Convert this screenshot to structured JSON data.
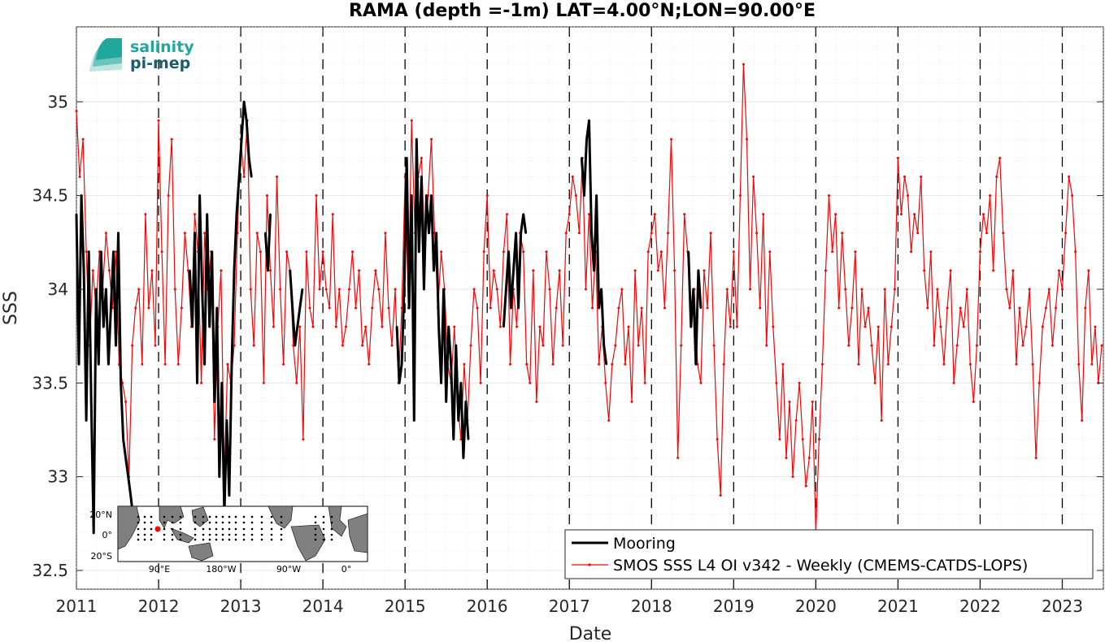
{
  "logo": {
    "line1": "salinity",
    "line2": "pi-mep"
  },
  "chart_data": {
    "type": "line",
    "title": "RAMA (depth =-1m) LAT=4.00°N;LON=90.00°E",
    "xlabel": "Date",
    "ylabel": "SSS",
    "xlim": [
      2011.0,
      2023.5
    ],
    "ylim": [
      32.4,
      35.4
    ],
    "x_ticks": [
      2011,
      2012,
      2013,
      2014,
      2015,
      2016,
      2017,
      2018,
      2019,
      2020,
      2021,
      2022,
      2023
    ],
    "x_tick_labels": [
      "2011",
      "2012",
      "2013",
      "2014",
      "2015",
      "2016",
      "2017",
      "2018",
      "2019",
      "2020",
      "2021",
      "2022",
      "2023"
    ],
    "y_ticks": [
      32.5,
      33,
      33.5,
      34,
      34.5,
      35
    ],
    "y_tick_labels": [
      "32.5",
      "33",
      "33.5",
      "34",
      "34.5",
      "35"
    ],
    "grid": true,
    "year_boundaries_dashed": true,
    "legend_position": "bottom-right",
    "series": [
      {
        "name": "Mooring",
        "color": "#000000",
        "x": [
          2011.0,
          2011.03,
          2011.06,
          2011.09,
          2011.12,
          2011.15,
          2011.18,
          2011.21,
          2011.24,
          2011.27,
          2011.3,
          2011.33,
          2011.36,
          2011.39,
          2011.42,
          2011.45,
          2011.48,
          2011.51,
          2011.54,
          2011.57,
          2011.6,
          2011.63,
          2011.66,
          2011.7,
          2012.38,
          2012.41,
          2012.44,
          2012.47,
          2012.5,
          2012.53,
          2012.56,
          2012.59,
          2012.62,
          2012.65,
          2012.68,
          2012.71,
          2012.74,
          2012.77,
          2012.8,
          2012.83,
          2012.86,
          2012.89,
          2012.92,
          2012.95,
          2012.98,
          2013.01,
          2013.04,
          2013.07,
          2013.1,
          2013.13,
          2013.3,
          2013.33,
          2013.36,
          2013.6,
          2013.63,
          2013.66,
          2013.69,
          2013.72,
          2013.75,
          2014.9,
          2014.93,
          2014.96,
          2014.99,
          2015.02,
          2015.05,
          2015.08,
          2015.11,
          2015.14,
          2015.17,
          2015.2,
          2015.23,
          2015.26,
          2015.29,
          2015.32,
          2015.35,
          2015.38,
          2015.41,
          2015.44,
          2015.47,
          2015.5,
          2015.53,
          2015.56,
          2015.59,
          2015.62,
          2015.65,
          2015.68,
          2015.71,
          2015.74,
          2015.77,
          2016.2,
          2016.23,
          2016.26,
          2016.29,
          2016.32,
          2016.35,
          2016.38,
          2016.41,
          2016.44,
          2016.47,
          2017.15,
          2017.18,
          2017.21,
          2017.24,
          2017.27,
          2017.3,
          2017.33,
          2017.36,
          2017.39,
          2017.42,
          2017.45,
          2018.45,
          2018.48,
          2018.51,
          2018.54,
          2018.57,
          2018.6
        ],
        "y": [
          34.4,
          33.6,
          34.5,
          34.1,
          33.3,
          34.2,
          33.4,
          32.7,
          34.0,
          33.6,
          34.2,
          33.8,
          34.0,
          33.6,
          33.9,
          34.2,
          33.7,
          34.3,
          33.5,
          33.2,
          33.1,
          33.0,
          32.9,
          32.75,
          34.1,
          33.8,
          34.3,
          33.5,
          34.5,
          34.0,
          33.6,
          34.4,
          33.8,
          34.2,
          33.4,
          33.9,
          33.0,
          33.5,
          32.8,
          33.3,
          32.9,
          33.6,
          34.1,
          34.4,
          34.6,
          34.8,
          35.0,
          34.9,
          34.7,
          34.6,
          34.3,
          34.1,
          34.4,
          34.1,
          33.9,
          33.7,
          33.8,
          33.9,
          34.0,
          33.8,
          33.5,
          33.6,
          34.0,
          34.7,
          33.9,
          34.5,
          33.3,
          34.8,
          34.2,
          34.6,
          34.0,
          34.5,
          34.3,
          34.5,
          34.1,
          34.3,
          33.8,
          33.5,
          34.0,
          33.4,
          33.8,
          33.6,
          33.2,
          33.7,
          33.3,
          33.5,
          33.1,
          33.4,
          33.2,
          33.8,
          34.0,
          34.2,
          33.9,
          34.1,
          34.3,
          33.9,
          34.3,
          34.4,
          34.3,
          34.7,
          34.5,
          34.8,
          34.9,
          34.3,
          34.1,
          34.5,
          33.9,
          34.0,
          33.7,
          33.6,
          34.2,
          33.8,
          34.0,
          33.6,
          34.1,
          33.9
        ]
      },
      {
        "name": "SMOS SSS L4 OI v342 - Weekly (CMEMS-CATDS-LOPS)",
        "color": "#ff0000",
        "x": [
          2011.0,
          2011.04,
          2011.08,
          2011.12,
          2011.16,
          2011.2,
          2011.24,
          2011.28,
          2011.32,
          2011.36,
          2011.4,
          2011.44,
          2011.48,
          2011.52,
          2011.56,
          2011.6,
          2011.64,
          2011.68,
          2011.72,
          2011.76,
          2011.8,
          2011.84,
          2011.88,
          2011.92,
          2011.96,
          2012.0,
          2012.04,
          2012.08,
          2012.12,
          2012.16,
          2012.2,
          2012.24,
          2012.28,
          2012.32,
          2012.36,
          2012.4,
          2012.44,
          2012.48,
          2012.52,
          2012.56,
          2012.6,
          2012.64,
          2012.68,
          2012.72,
          2012.76,
          2012.8,
          2012.84,
          2012.88,
          2012.92,
          2012.96,
          2013.0,
          2013.04,
          2013.08,
          2013.12,
          2013.16,
          2013.2,
          2013.24,
          2013.28,
          2013.32,
          2013.36,
          2013.4,
          2013.44,
          2013.48,
          2013.52,
          2013.56,
          2013.6,
          2013.64,
          2013.68,
          2013.72,
          2013.76,
          2013.8,
          2013.84,
          2013.88,
          2013.92,
          2013.96,
          2014.0,
          2014.04,
          2014.08,
          2014.12,
          2014.16,
          2014.2,
          2014.24,
          2014.28,
          2014.32,
          2014.36,
          2014.4,
          2014.44,
          2014.48,
          2014.52,
          2014.56,
          2014.6,
          2014.64,
          2014.68,
          2014.72,
          2014.76,
          2014.8,
          2014.84,
          2014.88,
          2014.92,
          2014.96,
          2015.0,
          2015.04,
          2015.08,
          2015.12,
          2015.16,
          2015.2,
          2015.24,
          2015.28,
          2015.32,
          2015.36,
          2015.4,
          2015.44,
          2015.48,
          2015.52,
          2015.56,
          2015.6,
          2015.64,
          2015.68,
          2015.72,
          2015.76,
          2015.8,
          2015.84,
          2015.88,
          2015.92,
          2015.96,
          2016.0,
          2016.04,
          2016.08,
          2016.12,
          2016.16,
          2016.2,
          2016.24,
          2016.28,
          2016.32,
          2016.36,
          2016.4,
          2016.44,
          2016.48,
          2016.52,
          2016.56,
          2016.6,
          2016.64,
          2016.68,
          2016.72,
          2016.76,
          2016.8,
          2016.84,
          2016.88,
          2016.92,
          2016.96,
          2017.0,
          2017.04,
          2017.08,
          2017.12,
          2017.16,
          2017.2,
          2017.24,
          2017.28,
          2017.32,
          2017.36,
          2017.4,
          2017.44,
          2017.48,
          2017.52,
          2017.56,
          2017.6,
          2017.64,
          2017.68,
          2017.72,
          2017.76,
          2017.8,
          2017.84,
          2017.88,
          2017.92,
          2017.96,
          2018.0,
          2018.04,
          2018.08,
          2018.12,
          2018.16,
          2018.2,
          2018.24,
          2018.28,
          2018.32,
          2018.36,
          2018.4,
          2018.44,
          2018.48,
          2018.52,
          2018.56,
          2018.6,
          2018.64,
          2018.68,
          2018.72,
          2018.76,
          2018.8,
          2018.84,
          2018.88,
          2018.92,
          2018.96,
          2019.0,
          2019.04,
          2019.08,
          2019.12,
          2019.16,
          2019.2,
          2019.24,
          2019.28,
          2019.32,
          2019.36,
          2019.4,
          2019.44,
          2019.48,
          2019.52,
          2019.56,
          2019.6,
          2019.64,
          2019.68,
          2019.72,
          2019.76,
          2019.8,
          2019.84,
          2019.88,
          2019.92,
          2019.96,
          2020.0,
          2020.04,
          2020.08,
          2020.12,
          2020.16,
          2020.2,
          2020.24,
          2020.28,
          2020.32,
          2020.36,
          2020.4,
          2020.44,
          2020.48,
          2020.52,
          2020.56,
          2020.6,
          2020.64,
          2020.68,
          2020.72,
          2020.76,
          2020.8,
          2020.84,
          2020.88,
          2020.92,
          2020.96,
          2021.0,
          2021.04,
          2021.08,
          2021.12,
          2021.16,
          2021.2,
          2021.24,
          2021.28,
          2021.32,
          2021.36,
          2021.4,
          2021.44,
          2021.48,
          2021.52,
          2021.56,
          2021.6,
          2021.64,
          2021.68,
          2021.72,
          2021.76,
          2021.8,
          2021.84,
          2021.88,
          2021.92,
          2021.96,
          2022.0,
          2022.04,
          2022.08,
          2022.12,
          2022.16,
          2022.2,
          2022.24,
          2022.28,
          2022.32,
          2022.36,
          2022.4,
          2022.44,
          2022.48,
          2022.52,
          2022.56,
          2022.6,
          2022.64,
          2022.68,
          2022.72,
          2022.76,
          2022.8,
          2022.84,
          2022.88,
          2022.92,
          2022.96,
          2023.0,
          2023.04,
          2023.08,
          2023.12,
          2023.16,
          2023.2,
          2023.24,
          2023.28,
          2023.32,
          2023.36,
          2023.4,
          2023.44,
          2023.48
        ],
        "y": [
          34.95,
          34.6,
          34.8,
          34.2,
          33.7,
          34.1,
          33.9,
          34.2,
          34.0,
          34.3,
          34.1,
          33.9,
          34.2,
          33.6,
          33.5,
          33.4,
          33.0,
          33.7,
          33.9,
          34.0,
          33.6,
          34.4,
          33.9,
          34.1,
          33.7,
          34.9,
          34.2,
          33.6,
          34.5,
          34.8,
          34.0,
          33.6,
          33.9,
          34.3,
          34.1,
          33.8,
          34.4,
          34.2,
          33.5,
          34.3,
          34.0,
          34.2,
          33.2,
          33.8,
          34.1,
          33.0,
          33.6,
          33.5,
          33.7,
          34.3,
          34.8,
          34.6,
          34.9,
          34.0,
          33.7,
          34.3,
          34.2,
          33.5,
          34.5,
          34.1,
          33.8,
          34.6,
          34.0,
          33.6,
          34.2,
          34.1,
          33.7,
          33.5,
          33.8,
          33.2,
          34.2,
          33.9,
          33.8,
          34.5,
          34.0,
          34.2,
          34.0,
          33.9,
          34.4,
          33.8,
          34.0,
          33.7,
          33.8,
          34.0,
          34.2,
          33.9,
          34.1,
          33.7,
          33.8,
          33.6,
          33.9,
          34.1,
          34.0,
          33.8,
          34.3,
          33.9,
          33.7,
          34.0,
          33.5,
          33.9,
          34.6,
          33.9,
          34.9,
          34.3,
          34.6,
          34.7,
          34.2,
          34.5,
          34.8,
          34.3,
          33.9,
          34.2,
          34.0,
          33.6,
          33.5,
          33.8,
          33.4,
          33.2,
          33.6,
          33.3,
          33.7,
          34.0,
          33.9,
          33.5,
          34.2,
          34.5,
          33.9,
          34.1,
          34.0,
          33.8,
          34.2,
          34.4,
          33.6,
          34.0,
          33.8,
          34.3,
          34.2,
          33.6,
          33.5,
          34.1,
          33.4,
          33.8,
          33.7,
          34.2,
          34.0,
          33.6,
          33.9,
          34.1,
          33.7,
          34.3,
          34.4,
          34.6,
          34.5,
          34.3,
          34.7,
          34.0,
          34.4,
          33.9,
          34.2,
          33.6,
          33.8,
          33.5,
          33.3,
          33.6,
          33.7,
          33.9,
          34.0,
          33.6,
          33.8,
          33.4,
          34.1,
          33.7,
          33.9,
          33.5,
          34.2,
          34.3,
          34.4,
          34.1,
          34.2,
          33.9,
          34.3,
          34.8,
          34.1,
          33.1,
          33.7,
          34.4,
          34.2,
          33.8,
          34.0,
          33.6,
          33.5,
          34.1,
          33.9,
          34.3,
          33.7,
          33.2,
          32.9,
          33.6,
          34.0,
          33.8,
          34.2,
          33.8,
          34.5,
          35.2,
          34.8,
          34.0,
          34.6,
          34.3,
          33.9,
          34.4,
          33.7,
          34.2,
          33.8,
          33.5,
          33.2,
          33.6,
          33.1,
          33.4,
          33.0,
          33.3,
          33.5,
          33.2,
          32.95,
          33.1,
          33.4,
          32.7,
          33.2,
          33.6,
          34.1,
          34.5,
          34.2,
          34.4,
          33.9,
          34.3,
          34.0,
          33.7,
          33.9,
          34.2,
          33.6,
          34.0,
          33.8,
          33.9,
          33.7,
          33.5,
          33.8,
          33.3,
          34.0,
          33.6,
          33.8,
          34.0,
          34.7,
          34.4,
          34.6,
          34.5,
          34.2,
          34.4,
          34.3,
          34.6,
          34.1,
          33.9,
          34.2,
          33.7,
          34.0,
          33.8,
          33.6,
          33.9,
          34.1,
          33.5,
          33.7,
          33.9,
          33.8,
          34.0,
          33.6,
          33.4,
          33.7,
          34.2,
          34.4,
          34.3,
          34.5,
          34.1,
          34.6,
          34.7,
          34.3,
          34.0,
          33.9,
          34.1,
          33.6,
          33.9,
          33.7,
          33.8,
          34.0,
          33.6,
          33.1,
          33.5,
          33.8,
          33.9,
          34.0,
          33.7,
          33.9,
          34.1,
          34.0,
          34.3,
          34.6,
          34.5,
          34.2,
          33.6,
          33.3,
          33.9,
          34.1,
          33.6,
          33.8,
          33.5,
          33.7
        ]
      }
    ]
  },
  "inset_map": {
    "lat_labels": [
      "20°N",
      "0°",
      "20°S"
    ],
    "lon_labels": [
      "90°E",
      "180°W",
      "90°W",
      "0°"
    ]
  }
}
